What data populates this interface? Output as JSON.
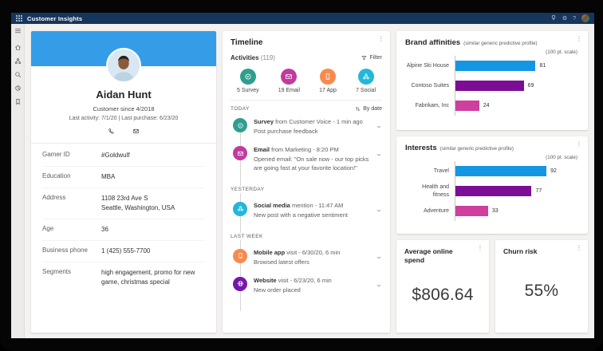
{
  "topbar": {
    "app_title": "Customer Insights"
  },
  "colors": {
    "topbar_navy": "#17365D",
    "profile_band_blue": "#359DE8",
    "chart_blue": "#1496E3",
    "chart_purple": "#7C0E96",
    "chart_pink": "#CE3F9E"
  },
  "profile": {
    "name": "Aidan Hunt",
    "since": "Customer since 4/2018",
    "last_line": "Last activity: 7/1/20  |  Last purchase: 6/23/20",
    "fields": [
      {
        "label": "Gamer ID",
        "value": "#Goldwulf"
      },
      {
        "label": "Education",
        "value": "MBA"
      },
      {
        "label": "Address",
        "value": "1108 23rd Ave S\nSeattle, Washington, USA"
      },
      {
        "label": "Age",
        "value": "36"
      },
      {
        "label": "Business phone",
        "value": "1 (425) 555-7700"
      },
      {
        "label": "Segments",
        "value": "high engagement, promo for new game, christmas special"
      }
    ]
  },
  "timeline": {
    "title": "Timeline",
    "activities_label": "Activities",
    "activities_count": "(119)",
    "filter_label": "Filter",
    "sort_label": "By date",
    "groups": [
      "TODAY",
      "YESTERDAY",
      "LAST WEEK"
    ],
    "summary": [
      {
        "label": "5 Survey",
        "color": "#2F9E8F",
        "icon": "survey-icon"
      },
      {
        "label": "19 Email",
        "color": "#C23A9F",
        "icon": "email-icon"
      },
      {
        "label": "17 App",
        "color": "#F78A4D",
        "icon": "mobile-icon"
      },
      {
        "label": "7 Social",
        "color": "#23B7D9",
        "icon": "people-icon"
      }
    ],
    "entries": [
      {
        "bold": "Survey",
        "rest": "from Customer Voice - 1 min ago",
        "desc": "Post purchase feedback",
        "color": "#2F9E8F",
        "icon": "feedback-icon"
      },
      {
        "bold": "Email",
        "rest": "from Marketing - 8:20 PM",
        "desc": "Opened email: \"On sale now - our top picks are going fast at your favorite location!\"",
        "color": "#C23A9F",
        "icon": "email-icon"
      },
      {
        "bold": "Social media",
        "rest": "mention - 11:47 AM",
        "desc": "New post with a negative sentiment",
        "color": "#23B7D9",
        "icon": "people-icon"
      },
      {
        "bold": "Mobile app",
        "rest": "visit - 6/30/20, 6 min",
        "desc": "Browsed latest offers",
        "color": "#F78A4D",
        "icon": "mobile-icon"
      },
      {
        "bold": "Website",
        "rest": "visit - 6/23/20, 6 min",
        "desc": "New order placed",
        "color": "#7619A8",
        "icon": "globe-icon"
      }
    ]
  },
  "chart_data": [
    {
      "type": "bar",
      "orientation": "horizontal",
      "title": "Brand affinities",
      "subtitle": "(similar generic predictive profile)",
      "scale_note": "(100 pt. scale)",
      "categories": [
        "Alpine Ski House",
        "Contoso Suites",
        "Fabrikam, Inc"
      ],
      "values": [
        81,
        69,
        24
      ],
      "colors": [
        "#1496E3",
        "#7C0E96",
        "#CE3F9E"
      ],
      "xlim": [
        0,
        100
      ],
      "legend": false,
      "grid": false
    },
    {
      "type": "bar",
      "orientation": "horizontal",
      "title": "Interests",
      "subtitle": "(similar generic predictive profile)",
      "scale_note": "(100 pt. scale)",
      "categories": [
        "Travel",
        "Health and fitness",
        "Adventure"
      ],
      "values": [
        92,
        77,
        33
      ],
      "colors": [
        "#1496E3",
        "#7C0E96",
        "#CE3F9E"
      ],
      "xlim": [
        0,
        100
      ],
      "legend": false,
      "grid": false
    }
  ],
  "kpis": {
    "average_online_spend": {
      "title": "Average online spend",
      "value": "$806.64"
    },
    "churn_risk": {
      "title": "Churn risk",
      "value": "55%"
    }
  }
}
